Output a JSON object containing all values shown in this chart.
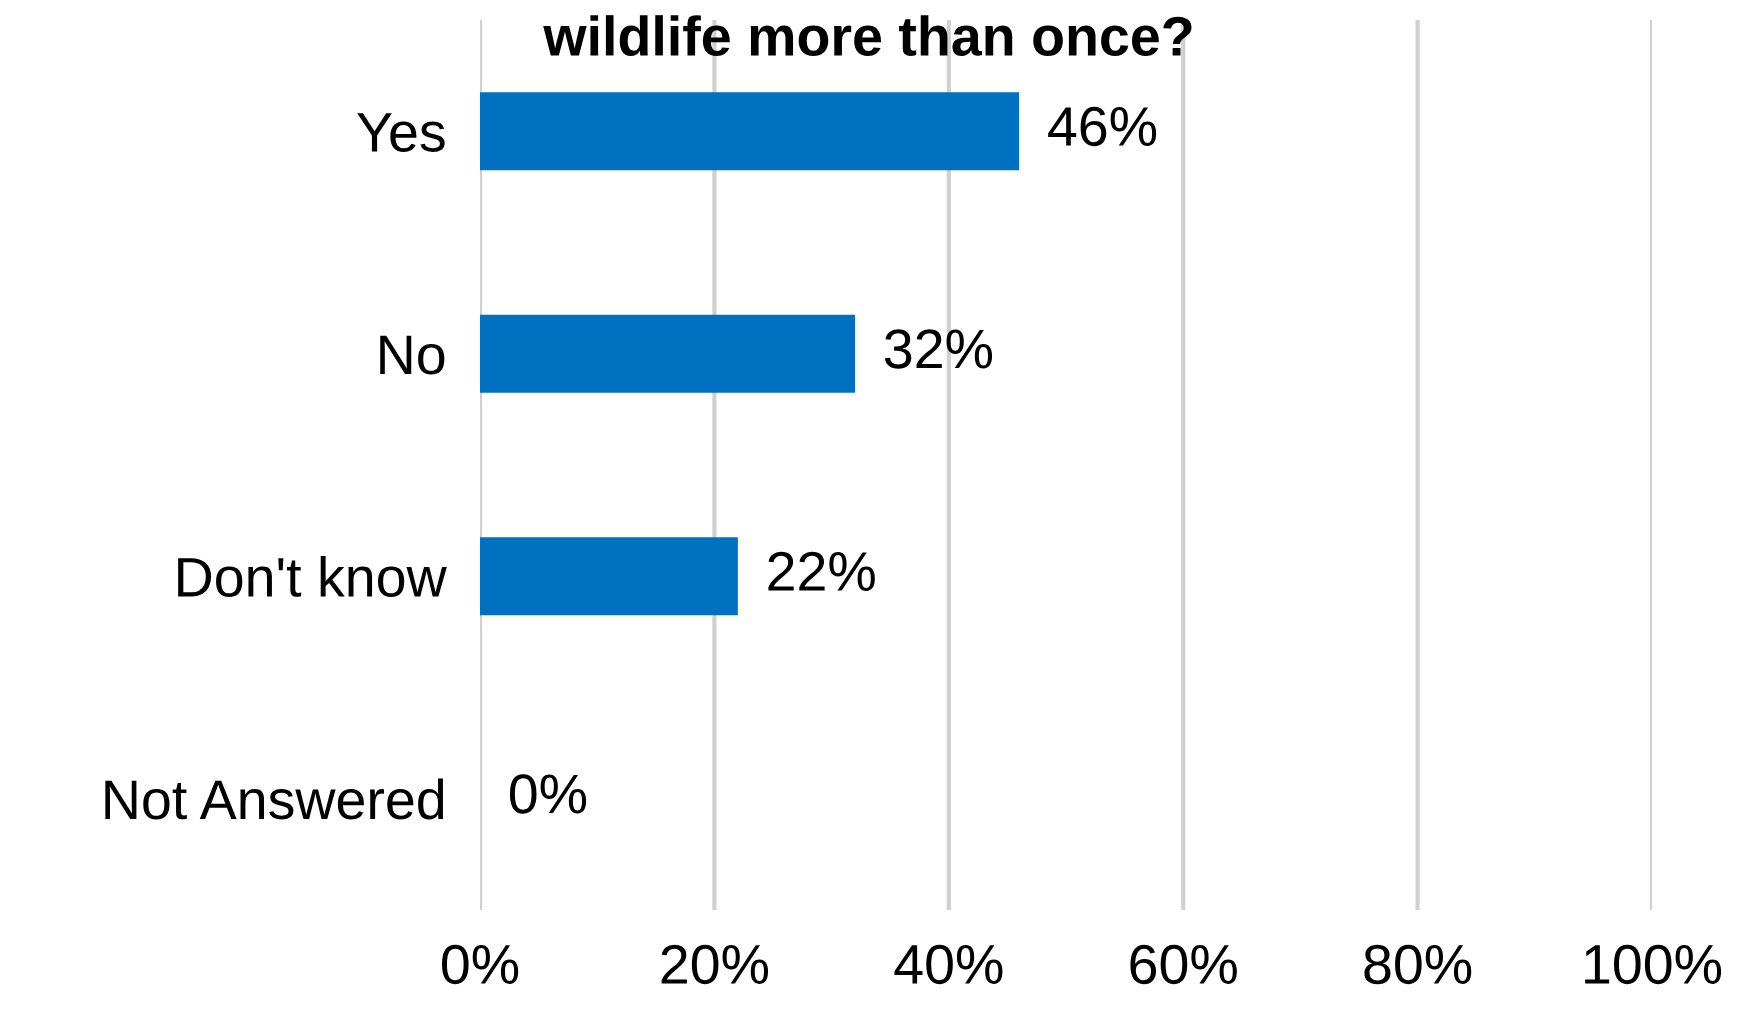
{
  "chart_data": {
    "type": "bar",
    "orientation": "horizontal",
    "title": "wildlife more than once?",
    "categories": [
      "Yes",
      "No",
      "Don't know",
      "Not Answered"
    ],
    "values": [
      46,
      32,
      22,
      0
    ],
    "value_labels": [
      "46%",
      "32%",
      "22%",
      "0%"
    ],
    "color": "#0070c0",
    "xlim": [
      0,
      100
    ],
    "xticks": [
      {
        "value": 0,
        "label": "0%"
      },
      {
        "value": 20,
        "label": "20%"
      },
      {
        "value": 40,
        "label": "40%"
      },
      {
        "value": 60,
        "label": "60%"
      },
      {
        "value": 80,
        "label": "80%"
      },
      {
        "value": 100,
        "label": "100%"
      }
    ],
    "grid": "x"
  }
}
